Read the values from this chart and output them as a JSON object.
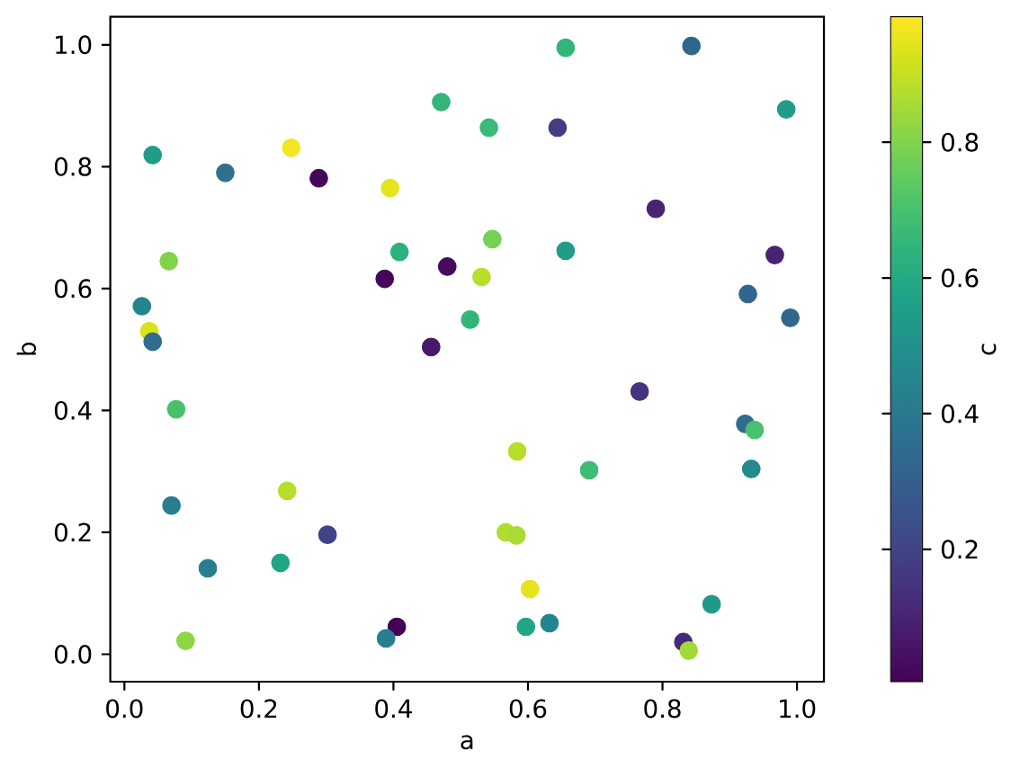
{
  "chart_data": {
    "type": "scatter",
    "xlabel": "a",
    "ylabel": "b",
    "clabel": "c",
    "marker": "circle",
    "xlim": [
      -0.021,
      1.04
    ],
    "ylim": [
      -0.045,
      1.046
    ],
    "xticks": [
      {
        "value": 0,
        "label": "0.0"
      },
      0.2,
      0.4,
      0.6,
      0.8,
      {
        "value": 1,
        "label": "1.0"
      }
    ],
    "yticks": [
      {
        "value": 0,
        "label": "0.0"
      },
      0.2,
      0.4,
      0.6,
      0.8,
      {
        "value": 1,
        "label": "1.0"
      }
    ],
    "clim": [
      0.005,
      0.985
    ],
    "cticks": [
      0.2,
      0.4,
      0.6,
      0.8
    ],
    "x": [
      0.026,
      0.037,
      0.042,
      0.042,
      0.066,
      0.15,
      0.248,
      0.289,
      0.395,
      0.471,
      0.409,
      0.387,
      0.48,
      0.456,
      0.514,
      0.531,
      0.656,
      0.843,
      0.984,
      0.542,
      0.644,
      0.79,
      0.547,
      0.656,
      0.967,
      0.927,
      0.99,
      0.077,
      0.07,
      0.242,
      0.302,
      0.124,
      0.232,
      0.091,
      0.405,
      0.389,
      0.766,
      0.923,
      0.937,
      0.932,
      0.584,
      0.691,
      0.567,
      0.583,
      0.603,
      0.597,
      0.632,
      0.873,
      0.831,
      0.839
    ],
    "values": [
      0.571,
      0.53,
      0.513,
      0.819,
      0.645,
      0.79,
      0.831,
      0.781,
      0.765,
      0.906,
      0.66,
      0.616,
      0.636,
      0.504,
      0.549,
      0.619,
      0.995,
      0.998,
      0.894,
      0.864,
      0.864,
      0.731,
      0.681,
      0.662,
      0.655,
      0.591,
      0.552,
      0.402,
      0.244,
      0.268,
      0.196,
      0.141,
      0.15,
      0.022,
      0.045,
      0.026,
      0.431,
      0.378,
      0.368,
      0.304,
      0.333,
      0.302,
      0.2,
      0.195,
      0.107,
      0.045,
      0.051,
      0.082,
      0.02,
      0.006
    ],
    "cvalues": [
      0.45,
      0.93,
      0.35,
      0.55,
      0.8,
      0.37,
      0.97,
      0.02,
      0.95,
      0.65,
      0.63,
      0.02,
      0.03,
      0.07,
      0.65,
      0.88,
      0.65,
      0.33,
      0.55,
      0.67,
      0.18,
      0.1,
      0.78,
      0.55,
      0.1,
      0.33,
      0.33,
      0.7,
      0.42,
      0.88,
      0.2,
      0.42,
      0.58,
      0.82,
      0.01,
      0.42,
      0.15,
      0.35,
      0.7,
      0.47,
      0.88,
      0.68,
      0.87,
      0.86,
      0.95,
      0.58,
      0.45,
      0.53,
      0.12,
      0.85
    ]
  }
}
